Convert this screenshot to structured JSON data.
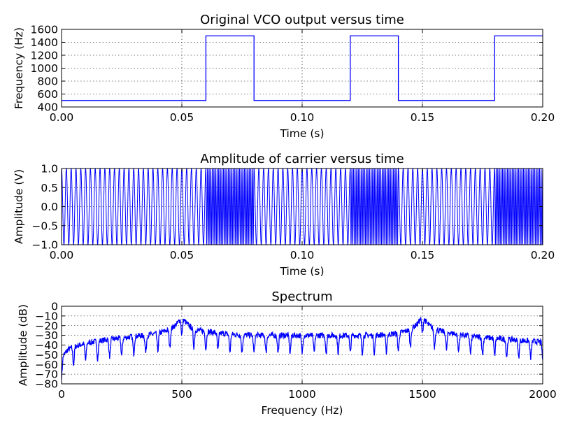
{
  "colors": {
    "line": "#0000ff",
    "axes": "#000000",
    "grid": "#000000",
    "background": "#ffffff"
  },
  "chart_data": [
    {
      "type": "line",
      "title": "Original VCO output versus time",
      "xlabel": "Time (s)",
      "ylabel": "Frequency (Hz)",
      "xlim": [
        0.0,
        0.2
      ],
      "ylim": [
        400,
        1600
      ],
      "xticks": [
        "0.00",
        "0.05",
        "0.10",
        "0.15",
        "0.20"
      ],
      "yticks": [
        "400",
        "600",
        "800",
        "1000",
        "1200",
        "1400",
        "1600"
      ],
      "grid": true,
      "series": [
        {
          "x": [
            0.0,
            0.06,
            0.06,
            0.08,
            0.08,
            0.12,
            0.12,
            0.14,
            0.14,
            0.18,
            0.18,
            0.2
          ],
          "y": [
            500,
            500,
            1500,
            1500,
            500,
            500,
            1500,
            1500,
            500,
            500,
            1500,
            1500
          ]
        }
      ]
    },
    {
      "type": "line",
      "title": "Amplitude of carrier versus time",
      "xlabel": "Time (s)",
      "ylabel": "Amplitude (V)",
      "xlim": [
        0.0,
        0.2
      ],
      "ylim": [
        -1.0,
        1.0
      ],
      "xticks": [
        "0.00",
        "0.05",
        "0.10",
        "0.15",
        "0.20"
      ],
      "yticks": [
        "−1.0",
        "−0.5",
        "0.0",
        "0.5",
        "1.0"
      ],
      "grid": true,
      "series": [
        {
          "signal": "cos(2*pi*f(t)*t)",
          "segments": [
            {
              "t_start": 0.0,
              "t_end": 0.06,
              "frequency_hz": 500
            },
            {
              "t_start": 0.06,
              "t_end": 0.08,
              "frequency_hz": 1500
            },
            {
              "t_start": 0.08,
              "t_end": 0.12,
              "frequency_hz": 500
            },
            {
              "t_start": 0.12,
              "t_end": 0.14,
              "frequency_hz": 1500
            },
            {
              "t_start": 0.14,
              "t_end": 0.18,
              "frequency_hz": 500
            },
            {
              "t_start": 0.18,
              "t_end": 0.2,
              "frequency_hz": 1500
            }
          ]
        }
      ]
    },
    {
      "type": "line",
      "title": "Spectrum",
      "xlabel": "Frequency (Hz)",
      "ylabel": "Amplitude (dB)",
      "xlim": [
        0,
        2000
      ],
      "ylim": [
        -80,
        0
      ],
      "xticks": [
        "0",
        "500",
        "1000",
        "1500",
        "2000"
      ],
      "yticks": [
        "−80",
        "−70",
        "−60",
        "−50",
        "−40",
        "−30",
        "−20",
        "−10",
        "0"
      ],
      "grid": true,
      "series": [
        {
          "x": [
            0,
            10,
            25,
            50,
            100,
            150,
            200,
            250,
            300,
            350,
            400,
            450,
            480,
            500,
            520,
            550,
            600,
            700,
            800,
            900,
            1000,
            1100,
            1200,
            1300,
            1400,
            1450,
            1480,
            1500,
            1520,
            1550,
            1600,
            1700,
            1800,
            1900,
            1950,
            2000
          ],
          "y": [
            -55,
            -50,
            -45,
            -42,
            -38,
            -36,
            -34,
            -33,
            -31,
            -30,
            -28,
            -24,
            -18,
            -11,
            -18,
            -24,
            -26,
            -29,
            -30,
            -30,
            -30,
            -30,
            -30,
            -30,
            -28,
            -24,
            -18,
            -10,
            -18,
            -24,
            -27,
            -31,
            -33,
            -35,
            -36,
            -37
          ],
          "notch_spacing_hz": 50,
          "notch_depth_db": 18
        }
      ]
    }
  ]
}
